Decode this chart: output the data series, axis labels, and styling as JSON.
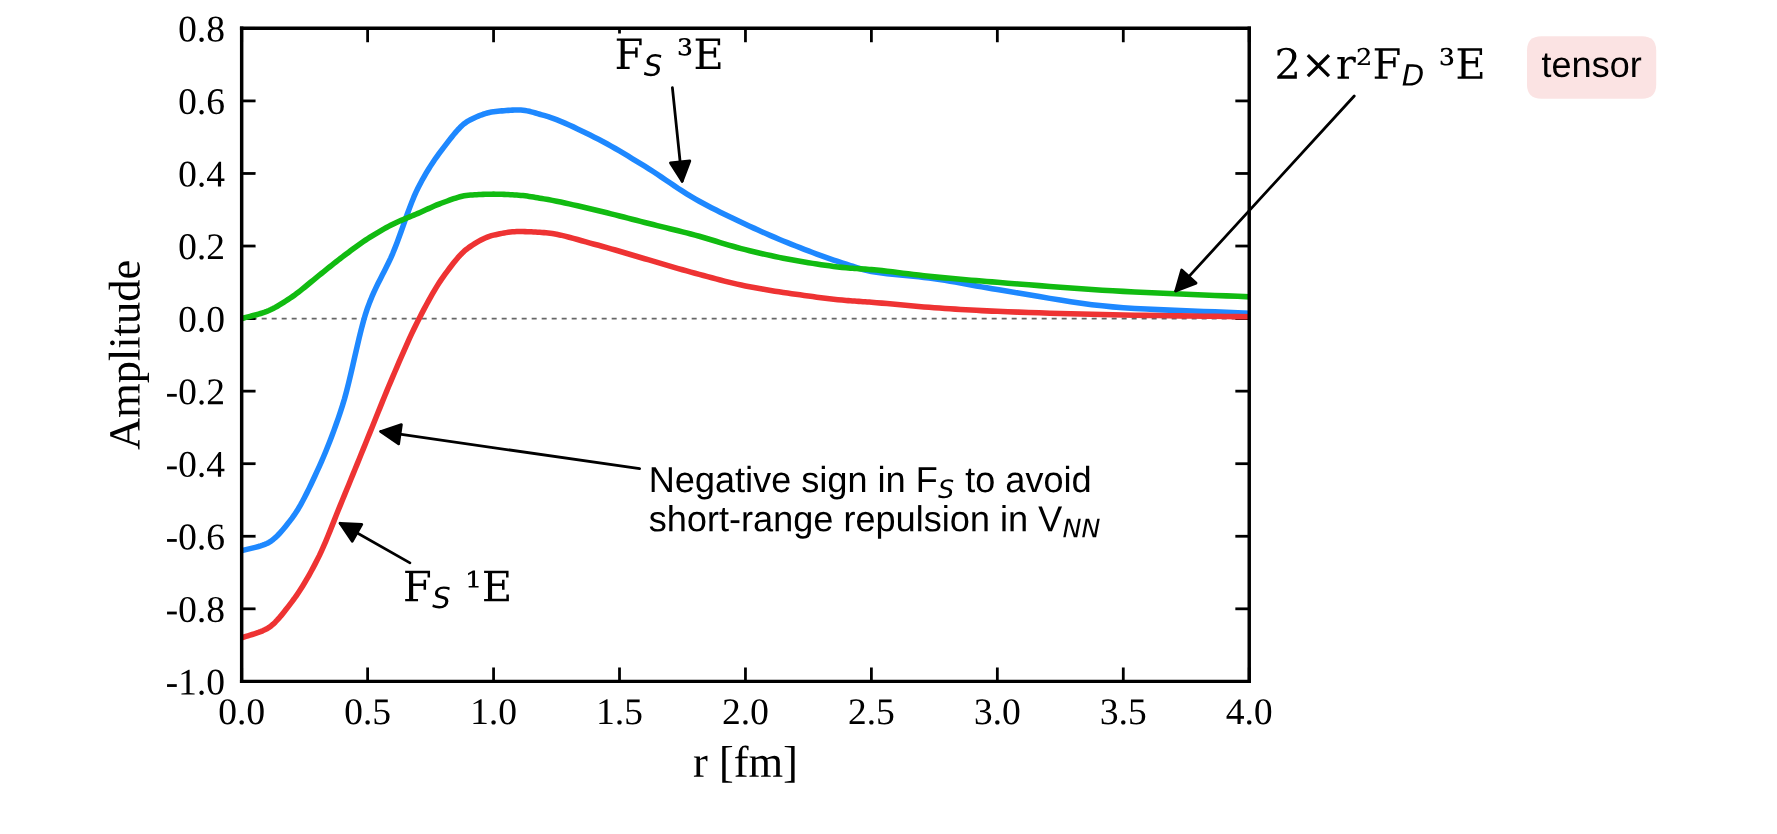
{
  "chart_data": {
    "type": "line",
    "xlabel": "r [fm]",
    "ylabel": "Amplitude",
    "xlim": [
      0,
      4
    ],
    "ylim": [
      -1,
      0.8
    ],
    "xticks": [
      {
        "value": 0,
        "label": "0.0"
      },
      {
        "value": 0.5,
        "label": "0.5"
      },
      {
        "value": 1,
        "label": "1.0"
      },
      {
        "value": 1.5,
        "label": "1.5"
      },
      {
        "value": 2,
        "label": "2.0"
      },
      {
        "value": 2.5,
        "label": "2.5"
      },
      {
        "value": 3,
        "label": "3.0"
      },
      {
        "value": 3.5,
        "label": "3.5"
      },
      {
        "value": 4,
        "label": "4.0"
      }
    ],
    "yticks": [
      {
        "value": -1,
        "label": "-1.0"
      },
      {
        "value": -0.8,
        "label": "-0.8"
      },
      {
        "value": -0.6,
        "label": "-0.6"
      },
      {
        "value": -0.4,
        "label": "-0.4"
      },
      {
        "value": -0.2,
        "label": "-0.2"
      },
      {
        "value": 0,
        "label": "0.0"
      },
      {
        "value": 0.2,
        "label": "0.2"
      },
      {
        "value": 0.4,
        "label": "0.4"
      },
      {
        "value": 0.6,
        "label": "0.6"
      },
      {
        "value": 0.8,
        "label": "0.8"
      }
    ],
    "x": [
      0,
      0.1,
      0.2,
      0.3,
      0.4,
      0.5,
      0.6,
      0.7,
      0.8,
      0.9,
      1.0,
      1.1,
      1.2,
      1.4,
      1.6,
      1.8,
      2.0,
      2.2,
      2.4,
      2.5,
      2.75,
      3.0,
      3.5,
      4.0
    ],
    "series": [
      {
        "color": "#1e88ff",
        "values": [
          -0.64,
          -0.62,
          -0.55,
          -0.42,
          -0.24,
          0.03,
          0.18,
          0.36,
          0.47,
          0.545,
          0.57,
          0.575,
          0.56,
          0.5,
          0.42,
          0.33,
          0.26,
          0.2,
          0.15,
          0.13,
          0.11,
          0.08,
          0.03,
          0.015
        ]
      },
      {
        "color": "#11bb11",
        "values": [
          0,
          0.02,
          0.06,
          0.115,
          0.17,
          0.22,
          0.26,
          0.29,
          0.32,
          0.34,
          0.343,
          0.34,
          0.33,
          0.3,
          0.265,
          0.23,
          0.19,
          0.16,
          0.14,
          0.135,
          0.115,
          0.1,
          0.075,
          0.06
        ]
      },
      {
        "color": "#ee3333",
        "values": [
          -0.88,
          -0.855,
          -0.78,
          -0.665,
          -0.5,
          -0.33,
          -0.16,
          -0.006,
          0.115,
          0.195,
          0.23,
          0.24,
          0.237,
          0.205,
          0.165,
          0.125,
          0.09,
          0.067,
          0.05,
          0.045,
          0.03,
          0.02,
          0.01,
          0.005
        ]
      }
    ],
    "ref_lines": [
      {
        "axis": "y",
        "value": 0,
        "color": "#666666",
        "line_style": "dashed"
      }
    ],
    "grid": false,
    "legend": false,
    "annotations": [
      {
        "text": "F$_{S}$ ³E",
        "x": 1.75,
        "y": 0.37
      },
      {
        "text": "2×r²F$_{D}$ ³E",
        "x": 3.7,
        "y": 0.07
      },
      {
        "text": "F$_{S}$ ¹E",
        "x": 0.38,
        "y": -0.56
      },
      {
        "text": "Negative sign in F$_{S}$ to avoid\nshort-range repulsion in V$_{NN}$",
        "x": 0.54,
        "y": -0.31
      },
      "tensor"
    ]
  }
}
